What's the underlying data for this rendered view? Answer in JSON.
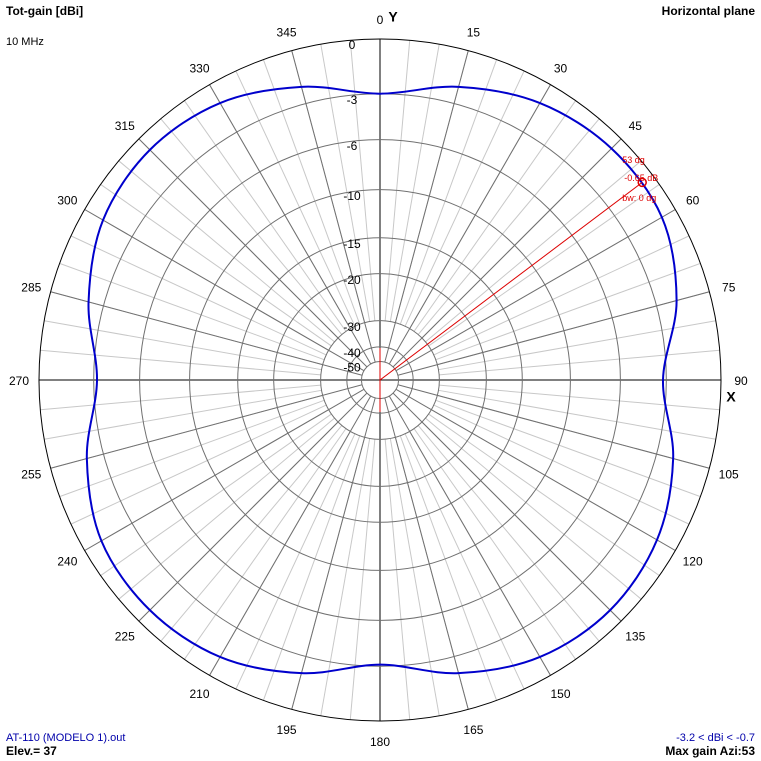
{
  "chart_data": {
    "type": "polar",
    "title": "Tot-gain [dBi]",
    "subtitle": "10 MHz",
    "plane": "Horizontal plane",
    "x_axis_label": "X",
    "y_axis_label": "Y",
    "radial_scale": "arrl-log",
    "rlim": [
      -50,
      0
    ],
    "rticks": [
      0,
      -3,
      -6,
      -10,
      -15,
      -20,
      -30,
      -40,
      -50
    ],
    "angle_ticks": [
      0,
      15,
      30,
      45,
      60,
      75,
      90,
      105,
      120,
      135,
      150,
      165,
      180,
      195,
      210,
      225,
      240,
      255,
      270,
      285,
      300,
      315,
      330,
      345
    ],
    "minor_grid_step": 5,
    "series": [
      {
        "name": null,
        "color": "#0000cc",
        "x": [
          0,
          15,
          30,
          45,
          60,
          75,
          90,
          105,
          120,
          135,
          150,
          165,
          180,
          195,
          210,
          225,
          240,
          255,
          270,
          285,
          300,
          315,
          330,
          345
        ],
        "values": [
          -3.0,
          -2.0,
          -1.1,
          -0.7,
          -0.8,
          -1.8,
          -3.2,
          -2.0,
          -1.1,
          -0.8,
          -1.1,
          -2.0,
          -3.1,
          -2.0,
          -1.1,
          -0.8,
          -1.0,
          -2.0,
          -3.2,
          -2.1,
          -1.1,
          -0.8,
          -1.1,
          -2.0
        ]
      }
    ],
    "marker": {
      "azimuth": 53,
      "gain": -0.65,
      "beamwidth": 0,
      "color": "#dd0000",
      "labels": [
        "53 dg",
        "-0.65 dB",
        "bw: 0 dg"
      ]
    },
    "file": "AT-110 (MODELO 1).out",
    "elevation_text": "Elev.= 37",
    "range_text": "-3.2 < dBi < -0.7",
    "max_gain_text": "Max gain Azi:53"
  }
}
